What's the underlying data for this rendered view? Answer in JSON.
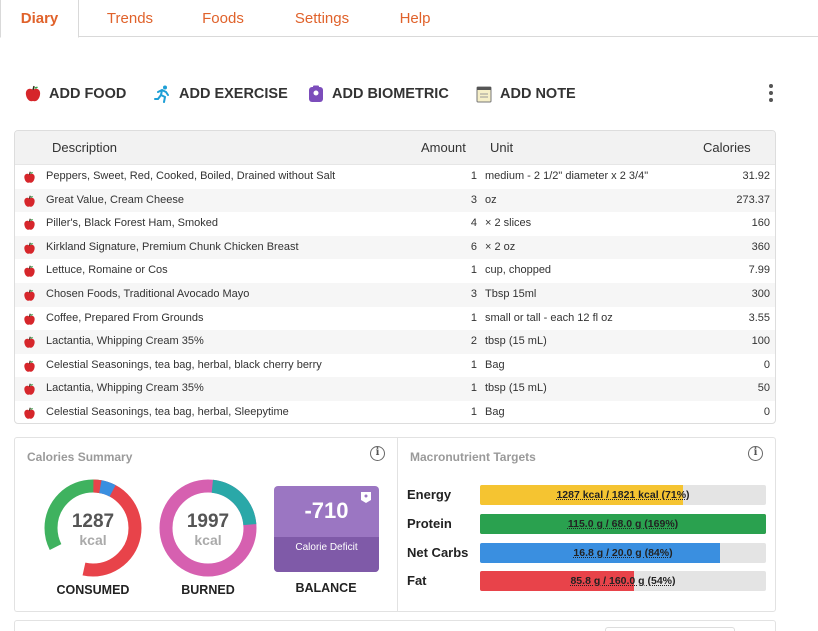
{
  "tabs": [
    {
      "label": "Diary",
      "active": true
    },
    {
      "label": "Trends"
    },
    {
      "label": "Foods"
    },
    {
      "label": "Settings"
    },
    {
      "label": "Help"
    }
  ],
  "actions": {
    "add_food": "ADD FOOD",
    "add_exercise": "ADD EXERCISE",
    "add_biometric": "ADD BIOMETRIC",
    "add_note": "ADD NOTE",
    "more_icon": "kebab-menu-icon"
  },
  "table": {
    "headers": {
      "description": "Description",
      "amount": "Amount",
      "unit": "Unit",
      "calories": "Calories"
    },
    "rows": [
      {
        "icon": "apple-icon",
        "description": "Peppers, Sweet, Red, Cooked, Boiled, Drained without Salt",
        "amount": "1",
        "unit": "medium - 2 1/2\" diameter x 2 3/4\"",
        "calories": "31.92"
      },
      {
        "icon": "apple-icon",
        "description": "Great Value, Cream Cheese",
        "amount": "3",
        "unit": "oz",
        "calories": "273.37"
      },
      {
        "icon": "apple-icon",
        "description": "Piller's, Black Forest Ham, Smoked",
        "amount": "4",
        "unit": "× 2 slices",
        "calories": "160"
      },
      {
        "icon": "apple-icon",
        "description": "Kirkland Signature, Premium Chunk Chicken Breast",
        "amount": "6",
        "unit": "× 2 oz",
        "calories": "360"
      },
      {
        "icon": "apple-icon",
        "description": "Lettuce, Romaine or Cos",
        "amount": "1",
        "unit": "cup, chopped",
        "calories": "7.99"
      },
      {
        "icon": "apple-icon",
        "description": "Chosen Foods, Traditional Avocado Mayo",
        "amount": "3",
        "unit": "Tbsp 15ml",
        "calories": "300"
      },
      {
        "icon": "apple-icon",
        "description": "Coffee, Prepared From Grounds",
        "amount": "1",
        "unit": "small or tall - each 12 fl oz",
        "calories": "3.55"
      },
      {
        "icon": "apple-icon",
        "description": "Lactantia, Whipping Cream 35%",
        "amount": "2",
        "unit": "tbsp (15 mL)",
        "calories": "100"
      },
      {
        "icon": "apple-icon",
        "description": "Celestial Seasonings, tea bag, herbal, black cherry berry",
        "amount": "1",
        "unit": "Bag",
        "calories": "0"
      },
      {
        "icon": "apple-icon",
        "description": "Lactantia, Whipping Cream 35%",
        "amount": "1",
        "unit": "tbsp (15 mL)",
        "calories": "50"
      },
      {
        "icon": "apple-icon",
        "description": "Celestial Seasonings, tea bag, herbal, Sleepytime",
        "amount": "1",
        "unit": "Bag",
        "calories": "0"
      }
    ]
  },
  "calories_summary": {
    "title": "Calories Summary",
    "consumed": {
      "value": "1287",
      "unit": "kcal",
      "label": "CONSUMED"
    },
    "burned": {
      "value": "1997",
      "unit": "kcal",
      "label": "BURNED"
    },
    "balance": {
      "value": "-710",
      "sub": "Calorie Deficit",
      "label": "BALANCE"
    },
    "colors": {
      "red": "#e8434a",
      "green": "#3fb25f",
      "blue": "#3a8fe0",
      "pink": "#d660b0",
      "teal": "#2aa8a8",
      "purple": "#9b76c2"
    }
  },
  "macros": {
    "title": "Macronutrient Targets",
    "items": [
      {
        "label": "Energy",
        "text": "1287 kcal / 1821 kcal (71%)",
        "fraction": 0.71,
        "color": "#f5c431"
      },
      {
        "label": "Protein",
        "text": "115.0 g / 68.0 g (169%)",
        "fraction": 1.0,
        "color": "#2aa14f"
      },
      {
        "label": "Net Carbs",
        "text": "16.8 g / 20.0 g (84%)",
        "fraction": 0.84,
        "color": "#3a8fe0"
      },
      {
        "label": "Fat",
        "text": "85.8 g / 160.0 g (54%)",
        "fraction": 0.54,
        "color": "#e8434a"
      }
    ]
  }
}
